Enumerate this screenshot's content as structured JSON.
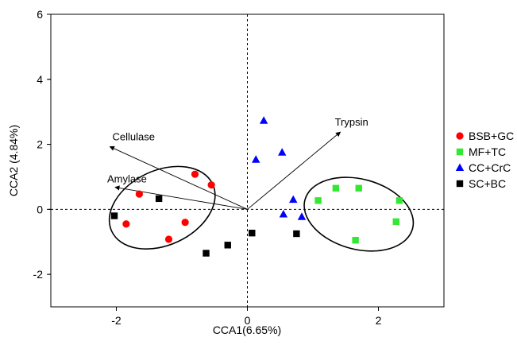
{
  "chart_data": {
    "type": "scatter",
    "xlabel": "CCA1(6.65%)",
    "ylabel": "CCA2 (4.84%)",
    "xlim": [
      -3,
      3
    ],
    "ylim": [
      -3,
      6
    ],
    "xticks": [
      -2,
      0,
      2
    ],
    "yticks": [
      -2,
      0,
      2,
      4,
      6
    ],
    "grid": false,
    "legend_position": "right",
    "series": [
      {
        "name": "BSB+GC",
        "marker": "circle",
        "color": "#ff0000",
        "points": [
          [
            -0.8,
            1.08
          ],
          [
            -0.55,
            0.75
          ],
          [
            -1.65,
            0.47
          ],
          [
            -1.85,
            -0.45
          ],
          [
            -0.95,
            -0.4
          ],
          [
            -1.2,
            -0.92
          ]
        ]
      },
      {
        "name": "MF+TC",
        "marker": "square",
        "color": "#33e833",
        "points": [
          [
            1.35,
            0.65
          ],
          [
            1.7,
            0.65
          ],
          [
            1.08,
            0.27
          ],
          [
            2.32,
            0.27
          ],
          [
            2.27,
            -0.38
          ],
          [
            1.65,
            -0.95
          ]
        ]
      },
      {
        "name": "CC+CrC",
        "marker": "triangle",
        "color": "#0000ff",
        "points": [
          [
            0.25,
            2.73
          ],
          [
            0.53,
            1.75
          ],
          [
            0.13,
            1.53
          ],
          [
            0.7,
            0.3
          ],
          [
            0.55,
            -0.15
          ],
          [
            0.83,
            -0.23
          ]
        ]
      },
      {
        "name": "SC+BC",
        "marker": "square",
        "color": "#000000",
        "points": [
          [
            -1.35,
            0.33
          ],
          [
            -2.03,
            -0.2
          ],
          [
            0.07,
            -0.73
          ],
          [
            0.75,
            -0.75
          ],
          [
            -0.3,
            -1.1
          ],
          [
            -0.63,
            -1.35
          ]
        ]
      }
    ],
    "arrows": [
      {
        "label": "Cellulase",
        "to": [
          -2.1,
          1.93
        ]
      },
      {
        "label": "Amylase",
        "to": [
          -2.02,
          0.68
        ]
      },
      {
        "label": "Trypsin",
        "to": [
          1.42,
          2.38
        ]
      }
    ],
    "ellipses": [
      {
        "center": [
          -1.3,
          0.05
        ],
        "rx": 0.85,
        "ry": 1.15,
        "rotation_deg": -25
      },
      {
        "center": [
          1.7,
          -0.15
        ],
        "rx": 0.85,
        "ry": 1.08,
        "rotation_deg": 15
      }
    ]
  }
}
